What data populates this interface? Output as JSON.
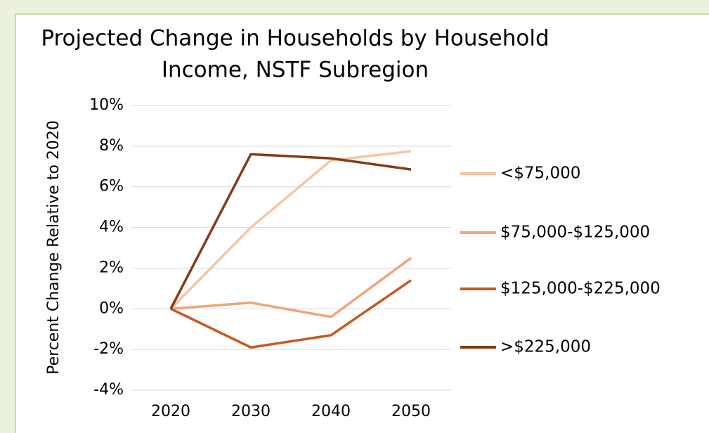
{
  "chart_data": {
    "type": "line",
    "title_lines": [
      "Projected Change in Households by Household",
      "Income, NSTF Subregion"
    ],
    "y_label": "Percent Change Relative to 2020",
    "categories": [
      "2020",
      "2030",
      "2040",
      "2050"
    ],
    "series": [
      {
        "name": "<$75,000",
        "color": "#f7c4a5",
        "values": [
          0,
          4.0,
          7.3,
          7.75
        ]
      },
      {
        "name": "$75,000-$125,000",
        "color": "#f0a47a",
        "values": [
          0,
          0.3,
          -0.4,
          2.5
        ]
      },
      {
        "name": "$125,000-$225,000",
        "color": "#c55a22",
        "values": [
          0,
          -1.9,
          -1.3,
          1.4
        ]
      },
      {
        "name": ">$225,000",
        "color": "#843c15",
        "values": [
          0,
          7.6,
          7.4,
          6.85
        ]
      }
    ],
    "ylim": [
      -4,
      10
    ],
    "yticks": [
      {
        "value": -4,
        "label": "-4%"
      },
      {
        "value": -2,
        "label": "-2%"
      },
      {
        "value": 0,
        "label": "0%"
      },
      {
        "value": 2,
        "label": "2%"
      },
      {
        "value": 4,
        "label": "4%"
      },
      {
        "value": 6,
        "label": "6%"
      },
      {
        "value": 8,
        "label": "8%"
      },
      {
        "value": 10,
        "label": "10%"
      }
    ],
    "grid": true,
    "legend": "right"
  }
}
